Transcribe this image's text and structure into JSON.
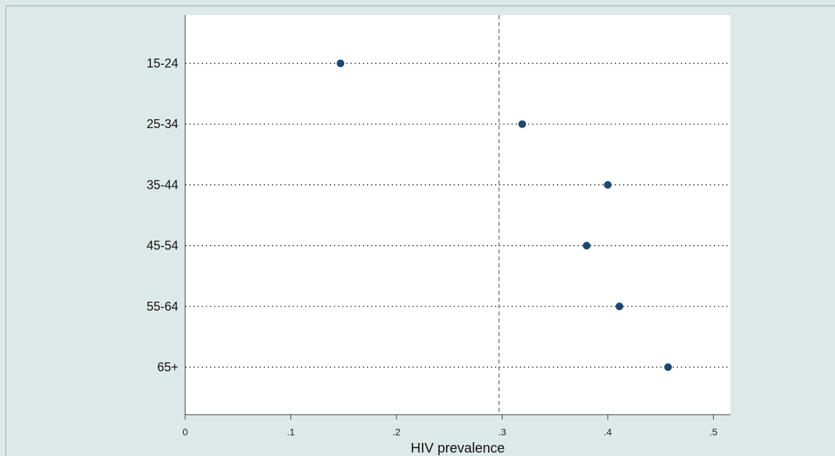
{
  "chart_data": {
    "type": "scatter",
    "orientation": "horizontal-dot",
    "categories": [
      "15-24",
      "25-34",
      "35-44",
      "45-54",
      "55-64",
      "65+"
    ],
    "values": [
      0.147,
      0.319,
      0.4,
      0.38,
      0.411,
      0.457
    ],
    "reference_line": 0.297,
    "xlim": [
      0,
      0.516
    ],
    "xticks": [
      0,
      0.1,
      0.2,
      0.3,
      0.4,
      0.5
    ],
    "xtick_labels": [
      "0",
      ".1",
      ".2",
      ".3",
      ".4",
      ".5"
    ],
    "xlabel": "HIV prevalence",
    "ylabel": "",
    "title": "",
    "legend": "none",
    "grid": "dotted horizontal lines at each category",
    "colors": {
      "marker": "#1a4a73",
      "background": "#dde9e9",
      "plot_area": "#ffffff",
      "reference_line": "#999999"
    }
  }
}
